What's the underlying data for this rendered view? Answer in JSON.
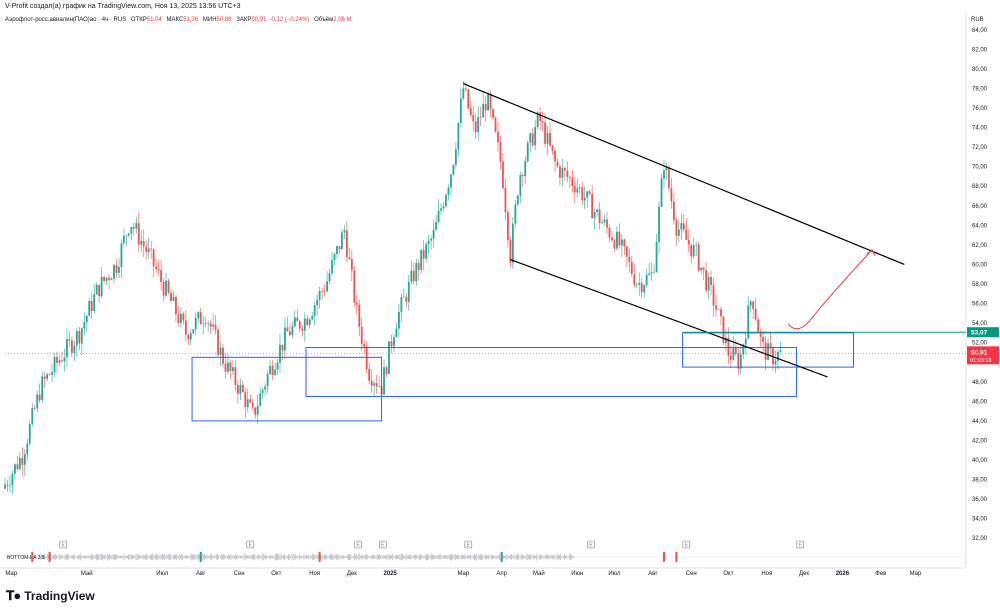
{
  "caption": "V-Profit создал(а) график на TradingView.com, Ноя 13, 2025 13:56 UTC+3",
  "legend": {
    "symbol": "Аэрофлот-росс.авиалин(ПАО)ао · 4ч · RUS",
    "open_label": "ОТКР",
    "open": "51,04",
    "high_label": "МАКС",
    "high": "51,36",
    "low_label": "МИН",
    "low": "50,88",
    "close_label": "ЗАКР",
    "close": "50,91",
    "change": "−0,12 (−0,24%)",
    "volume_label": "Объём",
    "volume": "2,06 M"
  },
  "currency": "RUB",
  "price_badges": {
    "level": "53,07",
    "last": "50,91",
    "countdown": "01:03:18"
  },
  "indicator_label": "BOTTOM-EA 3.5",
  "brand": "TradingView",
  "colors": {
    "up": "#26a69a",
    "down": "#ef5350",
    "box": "#2962ff",
    "trend": "#000000",
    "arrow": "#e53945",
    "level": "#089981",
    "badge_last": "#f23645"
  },
  "chart_data": {
    "type": "candlestick",
    "y_ticks": [
      "84,00",
      "82,00",
      "80,00",
      "78,00",
      "76,00",
      "74,00",
      "72,00",
      "70,00",
      "68,00",
      "66,00",
      "64,00",
      "62,00",
      "60,00",
      "58,00",
      "56,00",
      "54,00",
      "52,00",
      "50,00",
      "48,00",
      "46,00",
      "44,00",
      "42,00",
      "40,00",
      "38,00",
      "36,00",
      "34,00",
      "32,00"
    ],
    "ylim": [
      31,
      85
    ],
    "x_ticks": [
      "Мар",
      "Май",
      "Июл",
      "Авг",
      "Сен",
      "Окт",
      "Ноя",
      "Дек",
      "2025",
      "Мар",
      "Апр",
      "Май",
      "Июн",
      "Июл",
      "Авг",
      "Сен",
      "Окт",
      "Ноя",
      "Дек",
      "2026",
      "Фев",
      "Мар"
    ],
    "price_path": [
      [
        "2024-02-25",
        37.5
      ],
      [
        "2024-03-10",
        40.5
      ],
      [
        "2024-03-25",
        47.5
      ],
      [
        "2024-04-10",
        50.5
      ],
      [
        "2024-04-25",
        53.0
      ],
      [
        "2024-05-10",
        57.5
      ],
      [
        "2024-05-25",
        60.0
      ],
      [
        "2024-06-05",
        64.5
      ],
      [
        "2024-06-20",
        61.0
      ],
      [
        "2024-07-05",
        57.0
      ],
      [
        "2024-07-20",
        53.0
      ],
      [
        "2024-08-05",
        55.0
      ],
      [
        "2024-08-20",
        50.0
      ],
      [
        "2024-09-05",
        46.5
      ],
      [
        "2024-09-12",
        44.5
      ],
      [
        "2024-09-25",
        49.0
      ],
      [
        "2024-10-10",
        53.0
      ],
      [
        "2024-10-25",
        54.5
      ],
      [
        "2024-11-10",
        58.0
      ],
      [
        "2024-11-25",
        63.5
      ],
      [
        "2024-12-05",
        55.0
      ],
      [
        "2024-12-15",
        49.0
      ],
      [
        "2024-12-25",
        47.5
      ],
      [
        "2025-01-05",
        54.0
      ],
      [
        "2025-01-20",
        59.0
      ],
      [
        "2025-02-05",
        63.0
      ],
      [
        "2025-02-20",
        70.0
      ],
      [
        "2025-03-01",
        78.0
      ],
      [
        "2025-03-10",
        73.5
      ],
      [
        "2025-03-20",
        77.0
      ],
      [
        "2025-04-01",
        70.0
      ],
      [
        "2025-04-08",
        61.0
      ],
      [
        "2025-04-15",
        69.0
      ],
      [
        "2025-05-01",
        75.0
      ],
      [
        "2025-05-15",
        70.0
      ],
      [
        "2025-06-01",
        68.0
      ],
      [
        "2025-06-20",
        64.5
      ],
      [
        "2025-07-05",
        62.0
      ],
      [
        "2025-07-20",
        58.0
      ],
      [
        "2025-08-01",
        59.0
      ],
      [
        "2025-08-10",
        70.5
      ],
      [
        "2025-08-20",
        64.0
      ],
      [
        "2025-09-05",
        61.0
      ],
      [
        "2025-09-20",
        56.0
      ],
      [
        "2025-10-01",
        51.0
      ],
      [
        "2025-10-10",
        50.0
      ],
      [
        "2025-10-20",
        57.0
      ],
      [
        "2025-10-28",
        51.5
      ],
      [
        "2025-11-05",
        50.5
      ],
      [
        "2025-11-13",
        50.91
      ]
    ],
    "trendlines": [
      {
        "from": [
          "2025-03-01",
          78.5
        ],
        "to": [
          "2026-02-20",
          60.0
        ]
      },
      {
        "from": [
          "2025-04-08",
          60.5
        ],
        "to": [
          "2025-12-20",
          48.5
        ]
      }
    ],
    "boxes": [
      {
        "from": "2024-07-25",
        "to": "2024-12-25",
        "top": 50.5,
        "bottom": 44.0
      },
      {
        "from": "2024-10-25",
        "to": "2025-11-25",
        "top": 51.5,
        "bottom": 46.5
      },
      {
        "from": "2025-08-25",
        "to": "2026-01-10",
        "top": 53.0,
        "bottom": 49.5
      }
    ],
    "level_line": 53.07,
    "projection_arrow": {
      "from": [
        "2025-11-23",
        53.3
      ],
      "to": [
        "2026-01-25",
        61.5
      ]
    }
  }
}
